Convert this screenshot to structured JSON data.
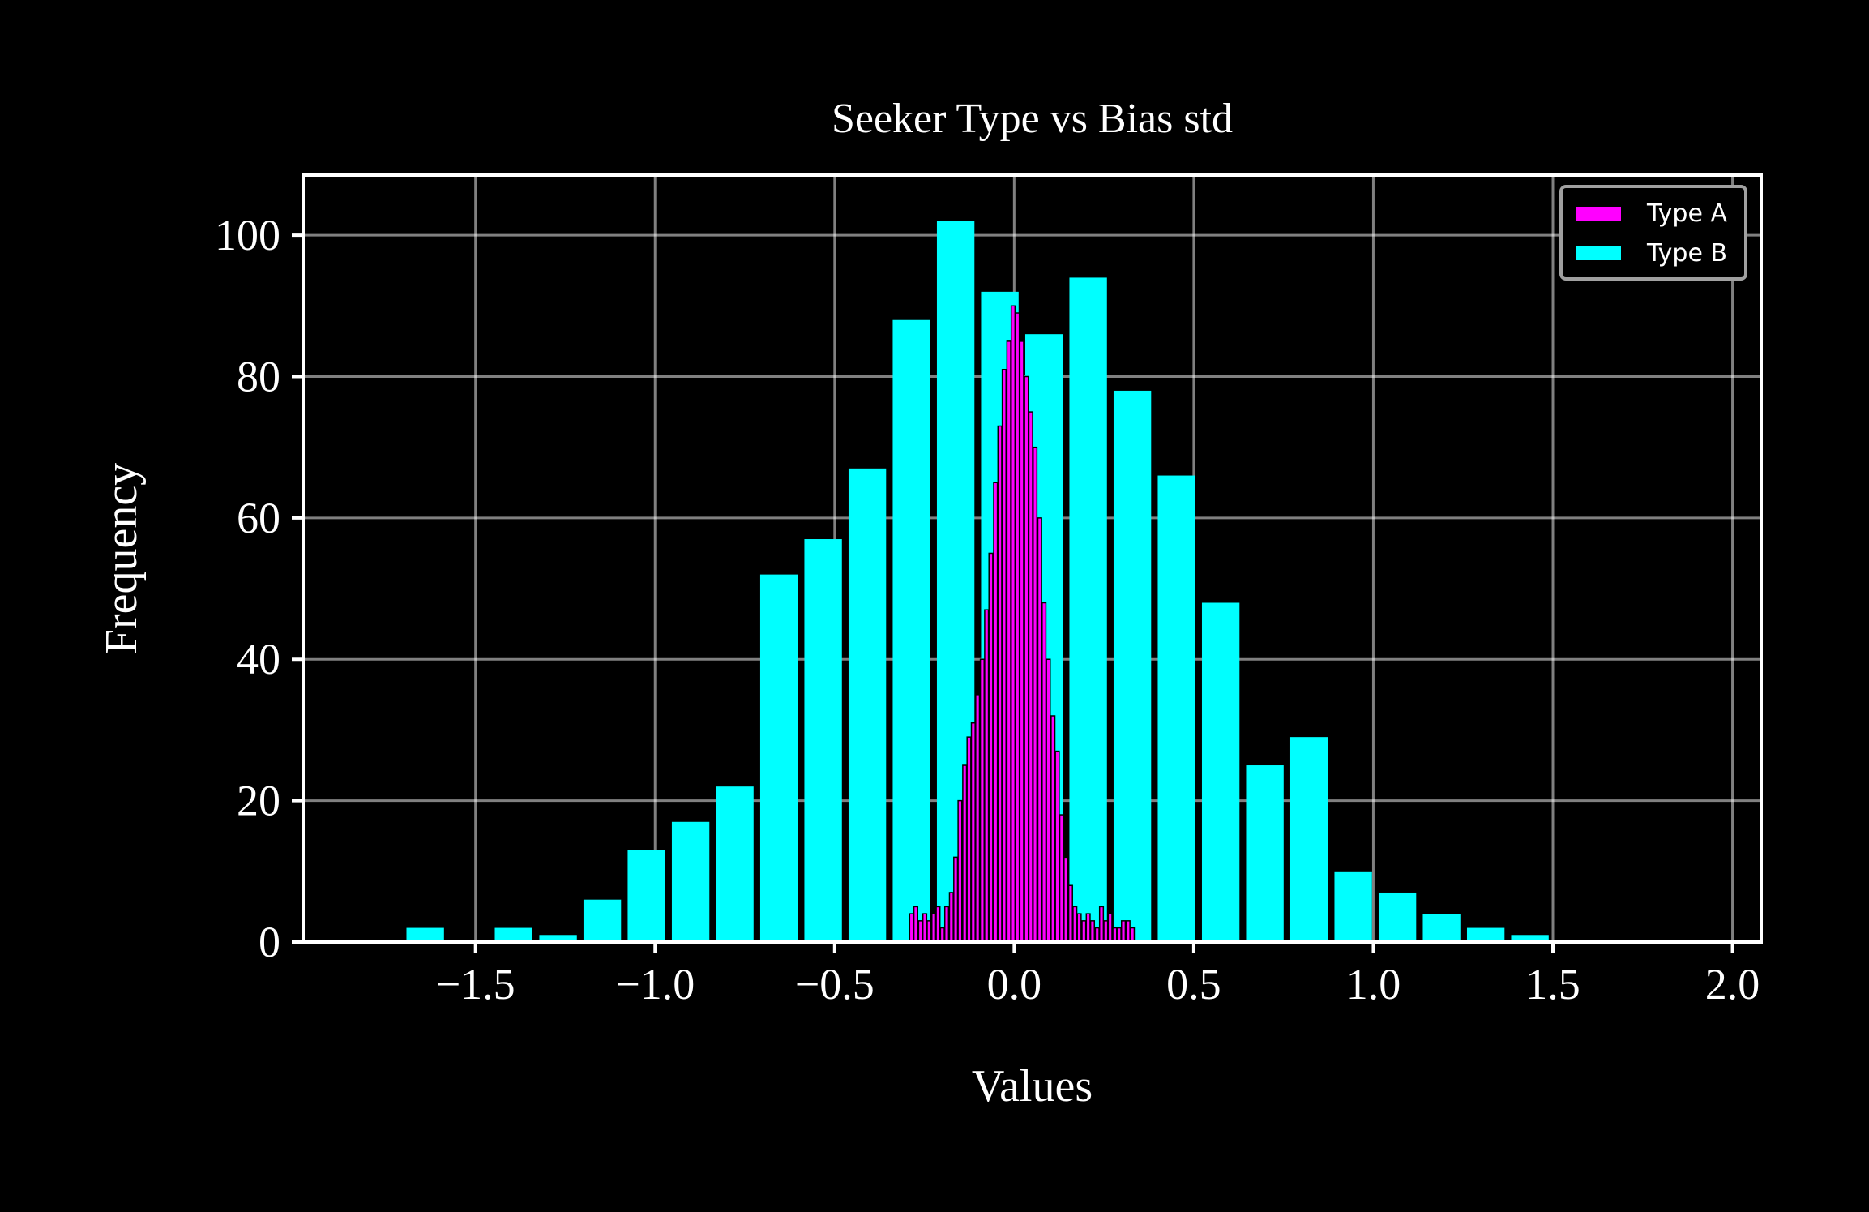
{
  "chart_data": {
    "type": "bar",
    "title": "Seeker Type vs Bias std",
    "xlabel": "Values",
    "ylabel": "Frequency",
    "xlim": [
      -1.98,
      2.08
    ],
    "ylim": [
      0,
      108.5
    ],
    "xticks": [
      -1.5,
      -1.0,
      -0.5,
      0.0,
      0.5,
      1.0,
      1.5,
      2.0
    ],
    "xtick_labels": [
      "−1.5",
      "−1.0",
      "−0.5",
      "0.0",
      "0.5",
      "1.0",
      "1.5",
      "2.0"
    ],
    "yticks": [
      0,
      20,
      40,
      60,
      80,
      100
    ],
    "ytick_labels": [
      "0",
      "20",
      "40",
      "60",
      "80",
      "100"
    ],
    "grid": true,
    "legend_position": "top-right",
    "series": [
      {
        "name": "Type B",
        "color": "#00ffff",
        "bin_width": 0.123,
        "bin_centers": [
          -1.887,
          -1.64,
          -1.394,
          -1.27,
          -1.147,
          -1.024,
          -0.901,
          -0.778,
          -0.655,
          -0.532,
          -0.409,
          -0.286,
          -0.163,
          -0.04,
          0.083,
          0.206,
          0.329,
          0.452,
          0.575,
          0.698,
          0.821,
          0.944,
          1.067,
          1.19,
          1.313,
          1.436,
          1.506
        ],
        "values": [
          0,
          2,
          2,
          1,
          6,
          13,
          17,
          22,
          52,
          57,
          67,
          88,
          102,
          92,
          86,
          94,
          78,
          66,
          48,
          25,
          29,
          10,
          7,
          4,
          2,
          1,
          0
        ]
      },
      {
        "name": "Type A",
        "color": "#ff00ff",
        "bin_width": 0.0123,
        "bin_centers": [
          -0.286,
          -0.274,
          -0.261,
          -0.249,
          -0.237,
          -0.224,
          -0.212,
          -0.2,
          -0.188,
          -0.175,
          -0.163,
          -0.151,
          -0.138,
          -0.126,
          -0.114,
          -0.102,
          -0.089,
          -0.077,
          -0.065,
          -0.052,
          -0.04,
          -0.028,
          -0.015,
          -0.003,
          0.009,
          0.021,
          0.034,
          0.046,
          0.058,
          0.071,
          0.083,
          0.095,
          0.108,
          0.12,
          0.132,
          0.144,
          0.157,
          0.169,
          0.181,
          0.194,
          0.206,
          0.218,
          0.231,
          0.243,
          0.255,
          0.267,
          0.28,
          0.292,
          0.304,
          0.317,
          0.329
        ],
        "values": [
          4,
          5,
          3,
          4,
          3,
          4,
          5,
          2,
          5,
          7,
          12,
          20,
          25,
          29,
          31,
          35,
          40,
          47,
          55,
          65,
          73,
          81,
          85,
          90,
          89,
          85,
          80,
          75,
          70,
          60,
          48,
          40,
          32,
          27,
          18,
          12,
          8,
          5,
          4,
          3,
          4,
          3,
          2,
          5,
          3,
          4,
          2,
          2,
          3,
          3,
          2
        ]
      }
    ]
  }
}
